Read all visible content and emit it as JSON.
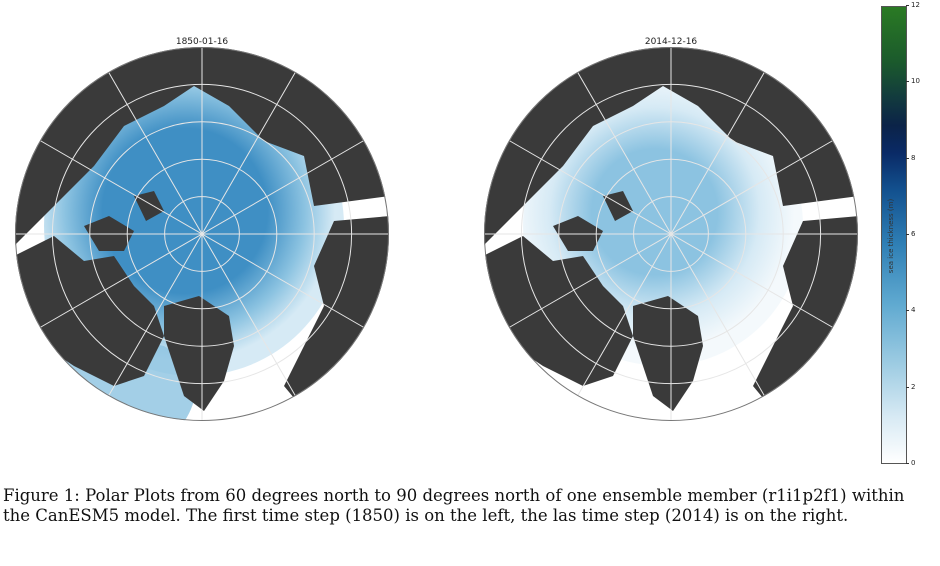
{
  "panels": [
    {
      "title": "1850-01-16",
      "period": "early"
    },
    {
      "title": "2014-12-16",
      "period": "late"
    }
  ],
  "colorbar": {
    "label": "sea ice thickness (m)",
    "ticks": [
      "0",
      "2",
      "4",
      "6",
      "8",
      "10",
      "12"
    ],
    "min": 0,
    "max": 12,
    "colormap": [
      "#ffffff",
      "#9ccbe2",
      "#2f7fb5",
      "#0a2a66",
      "#2a7a24"
    ]
  },
  "colors": {
    "land": "#3a3a3a",
    "ocean": "#ffffff",
    "grid": "#e6e6e6",
    "ice_thick": "#3f8fc4",
    "ice_mid": "#8cc3e1",
    "ice_thin": "#d6eaf5"
  },
  "caption": {
    "line1": "Figure 1: Polar Plots from 60 degrees north to 90 degrees north of one ensemble member (r1i1p2f1) within",
    "line2": "the CanESM5 model. The first time step (1850) is on the left, the las time step (2014) is on the right."
  }
}
